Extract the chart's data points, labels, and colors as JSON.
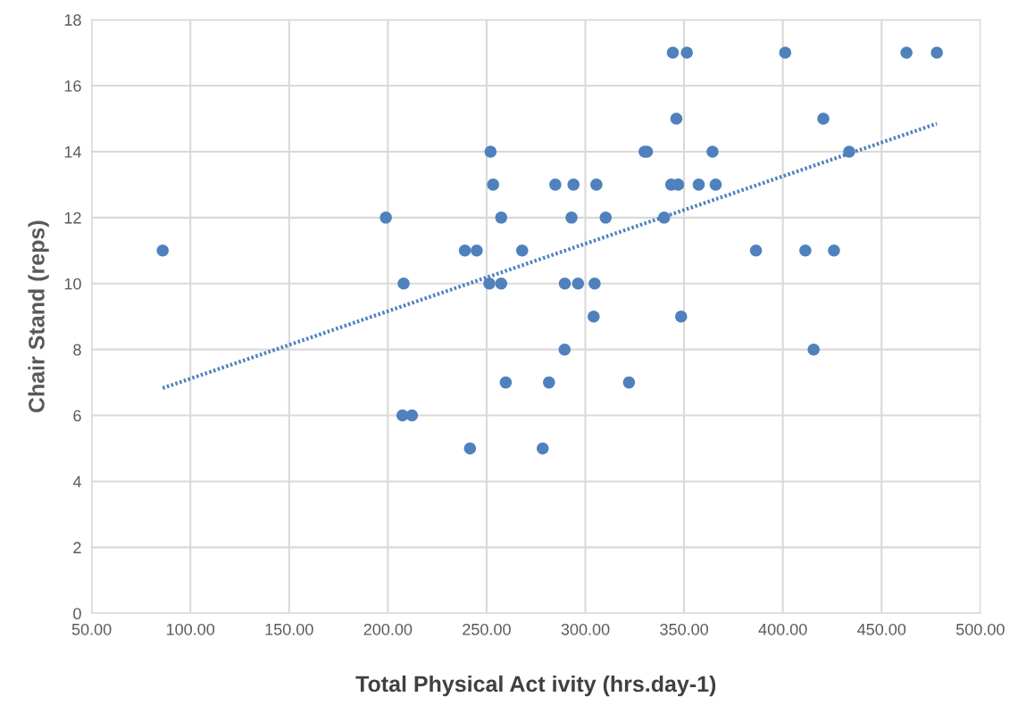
{
  "chart_data": {
    "type": "scatter",
    "xlabel": "Total Physical Act ivity (hrs.day-1)",
    "ylabel": "Chair Stand (reps)",
    "series": [
      {
        "color": "#4f81bd",
        "marker": "circle",
        "x": [
          86,
          199,
          239,
          245,
          208,
          207.4,
          212.2,
          241.6,
          252,
          253.3,
          257.4,
          268,
          251.4,
          257.4,
          259.7,
          278.4,
          284.8,
          294,
          305.6,
          293,
          310.3,
          289.6,
          296.3,
          304.7,
          304.2,
          289.5,
          281.6,
          322.1,
          330,
          331.2,
          344.3,
          351.4,
          346.1,
          364.4,
          343.5,
          347,
          357.4,
          366,
          339.9,
          348.5,
          401.2,
          462.6,
          478,
          420.5,
          433.6,
          386.4,
          411.4,
          425.9,
          415.6
        ],
        "values": [
          11,
          12,
          11,
          11,
          10,
          6,
          6,
          5,
          14,
          13,
          12,
          11,
          10,
          10,
          7,
          5,
          13,
          13,
          13,
          12,
          12,
          10,
          10,
          10,
          9,
          8,
          7,
          7,
          14,
          14,
          17,
          17,
          15,
          14,
          13,
          13,
          13,
          13,
          12,
          9,
          17,
          17,
          17,
          15,
          14,
          11,
          11,
          11,
          8
        ]
      },
      {
        "type": "line",
        "color": "#4f81bd",
        "line_style": "dotted",
        "x": [
          86,
          478
        ],
        "values": [
          6.83,
          14.85
        ]
      }
    ],
    "xlim": [
      50,
      500
    ],
    "xticks": [
      {
        "value": 50,
        "label": "50.00"
      },
      {
        "value": 100,
        "label": "100.00"
      },
      {
        "value": 150,
        "label": "150.00"
      },
      {
        "value": 200,
        "label": "200.00"
      },
      {
        "value": 250,
        "label": "250.00"
      },
      {
        "value": 300,
        "label": "300.00"
      },
      {
        "value": 350,
        "label": "350.00"
      },
      {
        "value": 400,
        "label": "400.00"
      },
      {
        "value": 450,
        "label": "450.00"
      },
      {
        "value": 500,
        "label": "500.00"
      }
    ],
    "ylim": [
      0,
      18
    ],
    "yticks": [
      0,
      2,
      4,
      6,
      8,
      10,
      12,
      14,
      16,
      18
    ],
    "grid": true
  }
}
